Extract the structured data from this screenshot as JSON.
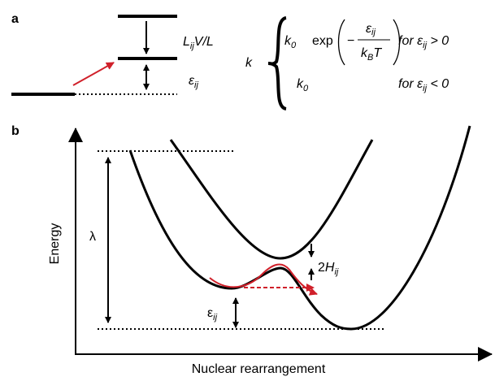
{
  "panel_a": {
    "label": "a",
    "gap_label": {
      "base": "L",
      "sub": "ij",
      "tail": "V/L"
    },
    "epsilon_label": {
      "base": "ε",
      "sub": "ij"
    },
    "rate": {
      "symbol": "k",
      "case1": {
        "prefactor": {
          "base": "k",
          "sub": "0"
        },
        "exp": "exp",
        "minus": "−",
        "numerator": {
          "base": "ε",
          "sub": "ij"
        },
        "denominator": {
          "base": "k",
          "sub": "B",
          "tail": "T"
        },
        "condition": {
          "pre": "for ε",
          "sub": "ij",
          "post": " > 0"
        }
      },
      "case2": {
        "prefactor": {
          "base": "k",
          "sub": "0"
        },
        "condition": {
          "pre": "for ε",
          "sub": "ij",
          "post": " < 0"
        }
      }
    }
  },
  "panel_b": {
    "label": "b",
    "y_axis": "Energy",
    "x_axis": "Nuclear rearrangement",
    "lambda": "λ",
    "coupling_label": {
      "pre": "2",
      "base": "H",
      "sub": "ij"
    },
    "epsilon_label": {
      "base": "ε",
      "sub": "ij"
    }
  }
}
